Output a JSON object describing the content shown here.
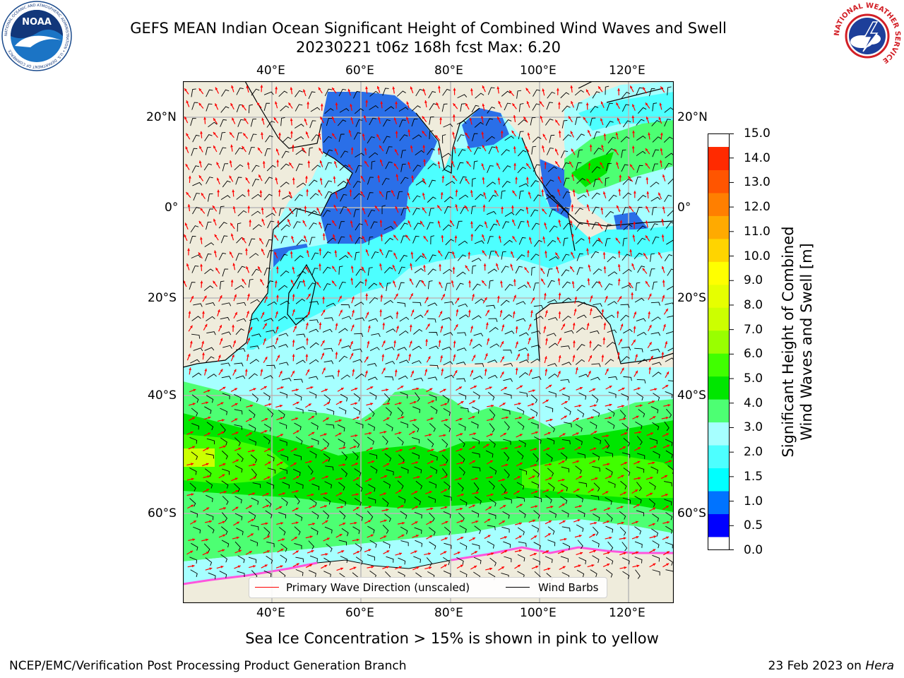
{
  "title": {
    "line1": "GEFS MEAN Indian Ocean Significant Height of Combined Wind Waves and Swell",
    "line2": "20230221 t06z 168h fcst   Max: 6.20"
  },
  "map": {
    "longitude_ticks": [
      "40°E",
      "60°E",
      "80°E",
      "100°E",
      "120°E"
    ],
    "latitude_ticks": [
      "20°N",
      "0°",
      "20°S",
      "40°S",
      "60°S"
    ],
    "colors": {
      "land": "#efecdc",
      "grid": "#b8b8b8",
      "wave_arrow": "#ff0000",
      "wind_barb": "#000000",
      "coast": "#000000"
    }
  },
  "colorbar": {
    "title_line1": "Significant Height of Combined",
    "title_line2": "Wind Waves and Swell [m]",
    "tick_labels": [
      "0.0",
      "0.5",
      "1.0",
      "1.5",
      "2.0",
      "3.0",
      "4.0",
      "5.0",
      "6.0",
      "7.0",
      "8.0",
      "9.0",
      "10.0",
      "11.0",
      "12.0",
      "13.0",
      "14.0",
      "15.0"
    ],
    "colors": [
      "#0000ff",
      "#0073ff",
      "#00ffff",
      "#4dffff",
      "#a6ffff",
      "#4dff73",
      "#00e600",
      "#40ff00",
      "#99ff00",
      "#ccff00",
      "#e6ff00",
      "#ffff00",
      "#ffd400",
      "#ffaa00",
      "#ff7f00",
      "#ff5500",
      "#ff2a00"
    ]
  },
  "legend": {
    "wave_label": "Primary Wave Direction (unscaled)",
    "wind_label": "Wind Barbs"
  },
  "ice_note": "Sea Ice Concentration > 15% is shown in pink to yellow",
  "footer": {
    "left": "NCEP/EMC/Verification Post Processing Product Generation Branch",
    "right_prefix": "23 Feb 2023 on ",
    "right_host": "Hera"
  },
  "logos": {
    "noaa_text": "NOAA",
    "noaa_ring_text": "NATIONAL OCEANIC AND ATMOSPHERIC ADMINISTRATION • U.S. DEPARTMENT OF COMMERCE",
    "nws_ring_text": "NATIONAL WEATHER SERVICE"
  }
}
